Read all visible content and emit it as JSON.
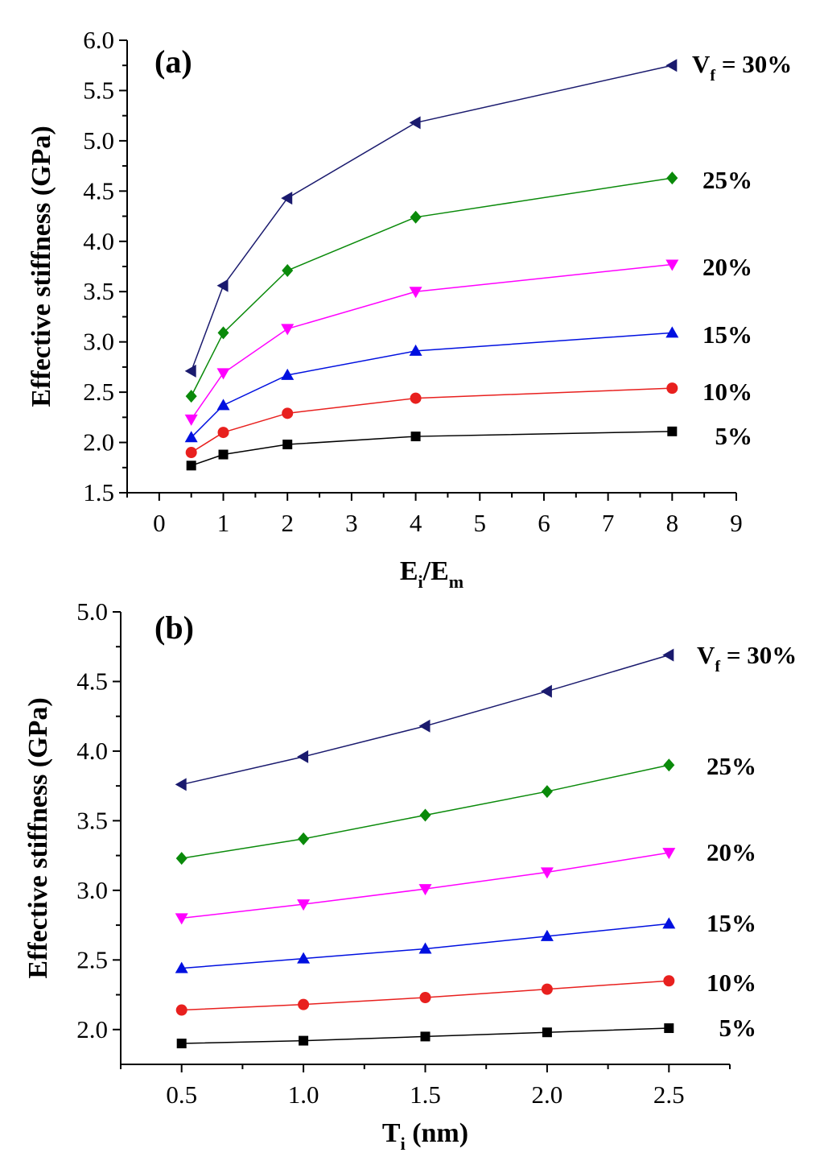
{
  "chart_data": [
    {
      "type": "line",
      "panel_label": "(a)",
      "xlabel": {
        "main": "E",
        "sub1": "i",
        "slash": "/E",
        "sub2": "m"
      },
      "ylabel": "Effective stiffness (GPa)",
      "xlim": [
        -0.5,
        9
      ],
      "ylim": [
        1.5,
        6.0
      ],
      "x_ticks": [
        "0",
        "1",
        "2",
        "3",
        "4",
        "5",
        "6",
        "7",
        "8",
        "9"
      ],
      "y_ticks": [
        "1.5",
        "2.0",
        "2.5",
        "3.0",
        "3.5",
        "4.0",
        "4.5",
        "5.0",
        "5.5",
        "6.0"
      ],
      "x": [
        0.5,
        1,
        2,
        4,
        8
      ],
      "series": [
        {
          "label": "5%",
          "color": "#000000",
          "marker": "square",
          "values": [
            1.77,
            1.88,
            1.98,
            2.06,
            2.11
          ]
        },
        {
          "label": "10%",
          "color": "#e8201e",
          "marker": "circle",
          "values": [
            1.9,
            2.1,
            2.29,
            2.44,
            2.54
          ]
        },
        {
          "label": "15%",
          "color": "#0010e0",
          "marker": "triangle-up",
          "values": [
            2.05,
            2.37,
            2.67,
            2.91,
            3.09
          ]
        },
        {
          "label": "20%",
          "color": "#ff00ff",
          "marker": "triangle-down",
          "values": [
            2.23,
            2.69,
            3.13,
            3.5,
            3.77
          ]
        },
        {
          "label": "25%",
          "color": "#0a8a0a",
          "marker": "diamond",
          "values": [
            2.46,
            3.09,
            3.71,
            4.24,
            4.63
          ]
        },
        {
          "label": "= 30%",
          "label_prefix": "V",
          "label_sub": "f",
          "color": "#1a1a6e",
          "marker": "triangle-left",
          "values": [
            2.71,
            3.56,
            4.43,
            5.18,
            5.75
          ]
        }
      ]
    },
    {
      "type": "line",
      "panel_label": "(b)",
      "xlabel": {
        "main": "T",
        "sub1": "i",
        "rest": " (nm)"
      },
      "ylabel": "Effective stiffness (GPa)",
      "xlim": [
        0.25,
        2.75
      ],
      "ylim": [
        1.75,
        5.0
      ],
      "x_ticks": [
        "0.5",
        "1.0",
        "1.5",
        "2.0",
        "2.5"
      ],
      "y_ticks": [
        "2.0",
        "2.5",
        "3.0",
        "3.5",
        "4.0",
        "4.5",
        "5.0"
      ],
      "x": [
        0.5,
        1.0,
        1.5,
        2.0,
        2.5
      ],
      "series": [
        {
          "label": "5%",
          "color": "#000000",
          "marker": "square",
          "values": [
            1.9,
            1.92,
            1.95,
            1.98,
            2.01
          ]
        },
        {
          "label": "10%",
          "color": "#e8201e",
          "marker": "circle",
          "values": [
            2.14,
            2.18,
            2.23,
            2.29,
            2.35
          ]
        },
        {
          "label": "15%",
          "color": "#0010e0",
          "marker": "triangle-up",
          "values": [
            2.44,
            2.51,
            2.58,
            2.67,
            2.76
          ]
        },
        {
          "label": "20%",
          "color": "#ff00ff",
          "marker": "triangle-down",
          "values": [
            2.8,
            2.9,
            3.01,
            3.13,
            3.27
          ]
        },
        {
          "label": "25%",
          "color": "#0a8a0a",
          "marker": "diamond",
          "values": [
            3.23,
            3.37,
            3.54,
            3.71,
            3.9
          ]
        },
        {
          "label": "= 30%",
          "label_prefix": "V",
          "label_sub": "f",
          "color": "#1a1a6e",
          "marker": "triangle-left",
          "values": [
            3.76,
            3.96,
            4.18,
            4.43,
            4.69
          ]
        }
      ]
    }
  ]
}
